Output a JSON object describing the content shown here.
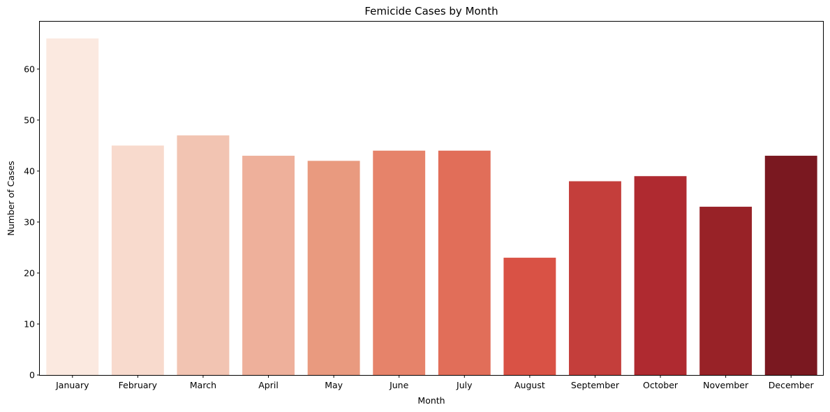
{
  "chart_data": {
    "type": "bar",
    "title": "Femicide Cases by Month",
    "xlabel": "Month",
    "ylabel": "Number of Cases",
    "categories": [
      "January",
      "February",
      "March",
      "April",
      "May",
      "June",
      "July",
      "August",
      "September",
      "October",
      "November",
      "December"
    ],
    "values": [
      66,
      45,
      47,
      43,
      42,
      44,
      44,
      23,
      38,
      39,
      33,
      43
    ],
    "colors": [
      "#fbe9e0",
      "#f8dacd",
      "#f2c4b2",
      "#eeb09b",
      "#e99a7f",
      "#e6836a",
      "#e16e59",
      "#d95245",
      "#c43e3b",
      "#af2a30",
      "#982227",
      "#7a1820"
    ],
    "ylim": [
      0,
      69.3
    ],
    "yticks": [
      0,
      10,
      20,
      30,
      40,
      50,
      60
    ],
    "grid": false,
    "legend": "none"
  }
}
